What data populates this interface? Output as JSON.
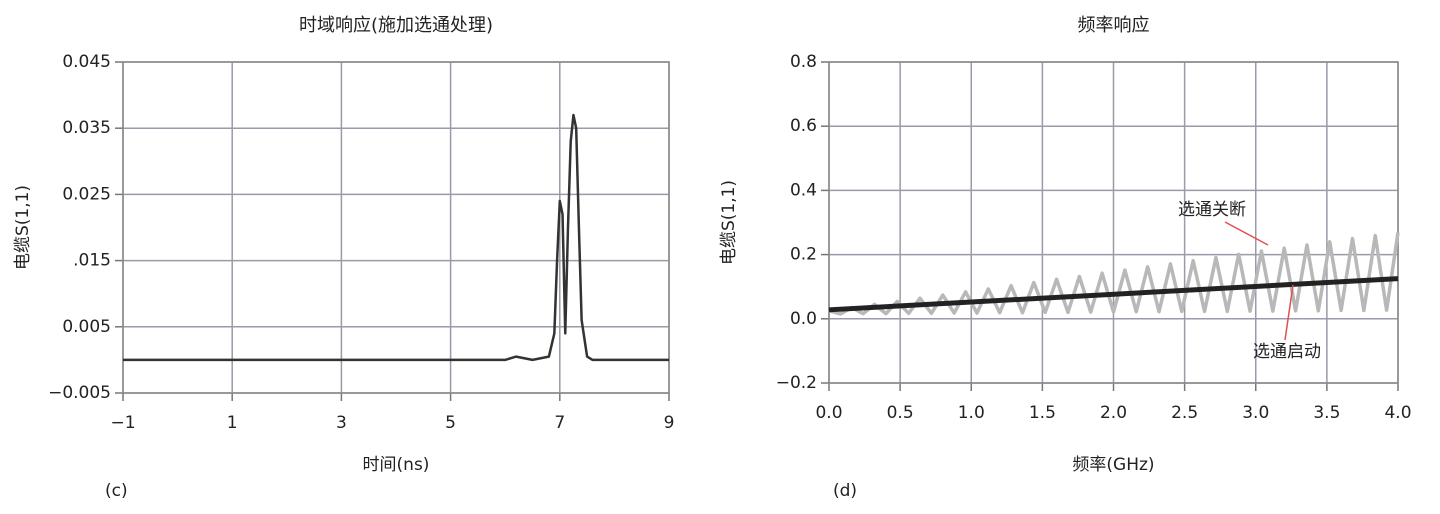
{
  "chart_data": [
    {
      "type": "line",
      "title": "时域响应(施加选通处理)",
      "x_label": "时间(ns)",
      "y_label": "电缆S(1,1)",
      "caption": "(c)",
      "xlim": [
        -1,
        9
      ],
      "xticks": [
        {
          "value": -1,
          "label": "−1"
        },
        1,
        3,
        5,
        7,
        9
      ],
      "ylim": [
        -0.005,
        0.045
      ],
      "yticks": [
        {
          "value": -0.005,
          "label": "−0.005"
        },
        0.005,
        {
          "value": 0.015,
          "label": ".015"
        },
        0.025,
        0.035,
        0.045
      ],
      "grid": true,
      "color": "#333333",
      "x": [
        -1,
        6,
        6.2,
        6.5,
        6.8,
        6.9,
        6.95,
        7.0,
        7.05,
        7.1,
        7.15,
        7.2,
        7.25,
        7.3,
        7.35,
        7.4,
        7.5,
        7.6,
        9
      ],
      "values": [
        0,
        0,
        0.0005,
        0,
        0.0005,
        0.004,
        0.015,
        0.024,
        0.022,
        0.004,
        0.02,
        0.033,
        0.037,
        0.035,
        0.02,
        0.006,
        0.0005,
        0,
        0
      ]
    },
    {
      "type": "line",
      "title": "频率响应",
      "x_label": "频率(GHz)",
      "y_label": "电缆S(1,1)",
      "caption": "(d)",
      "xlim": [
        0,
        4
      ],
      "xticks": [
        {
          "value": 0,
          "label": "0.0"
        },
        0.5,
        {
          "value": 1,
          "label": "1.0"
        },
        1.5,
        {
          "value": 2,
          "label": "2.0"
        },
        2.5,
        {
          "value": 3,
          "label": "3.0"
        },
        3.5,
        {
          "value": 4,
          "label": "4.0"
        }
      ],
      "ylim": [
        -0.2,
        0.8
      ],
      "yticks": [
        {
          "value": -0.2,
          "label": "−0.2"
        },
        {
          "value": 0,
          "label": "0.0"
        },
        0.2,
        0.4,
        0.6,
        0.8
      ],
      "grid": true,
      "series": [
        {
          "name": "选通关断",
          "color": "#b8b8b8",
          "x": [
            0,
            0.08,
            0.16,
            0.24,
            0.32,
            0.4,
            0.48,
            0.56,
            0.64,
            0.72,
            0.8,
            0.88,
            0.96,
            1.04,
            1.12,
            1.2,
            1.28,
            1.36,
            1.44,
            1.52,
            1.6,
            1.68,
            1.76,
            1.84,
            1.92,
            2.0,
            2.08,
            2.16,
            2.24,
            2.32,
            2.4,
            2.48,
            2.56,
            2.64,
            2.72,
            2.8,
            2.88,
            2.96,
            3.04,
            3.12,
            3.2,
            3.28,
            3.36,
            3.44,
            3.52,
            3.6,
            3.68,
            3.76,
            3.84,
            3.92,
            4.0
          ],
          "values": [
            0.025,
            0.015,
            0.035,
            0.016,
            0.045,
            0.016,
            0.054,
            0.017,
            0.064,
            0.017,
            0.074,
            0.018,
            0.084,
            0.018,
            0.093,
            0.019,
            0.103,
            0.019,
            0.113,
            0.02,
            0.123,
            0.02,
            0.132,
            0.021,
            0.142,
            0.021,
            0.152,
            0.022,
            0.162,
            0.022,
            0.171,
            0.023,
            0.181,
            0.023,
            0.191,
            0.023,
            0.201,
            0.024,
            0.211,
            0.024,
            0.22,
            0.025,
            0.23,
            0.025,
            0.24,
            0.026,
            0.25,
            0.026,
            0.259,
            0.027,
            0.269
          ]
        },
        {
          "name": "选通启动",
          "color": "#222222",
          "x": [
            0,
            4
          ],
          "values": [
            0.028,
            0.125
          ]
        }
      ]
    }
  ]
}
